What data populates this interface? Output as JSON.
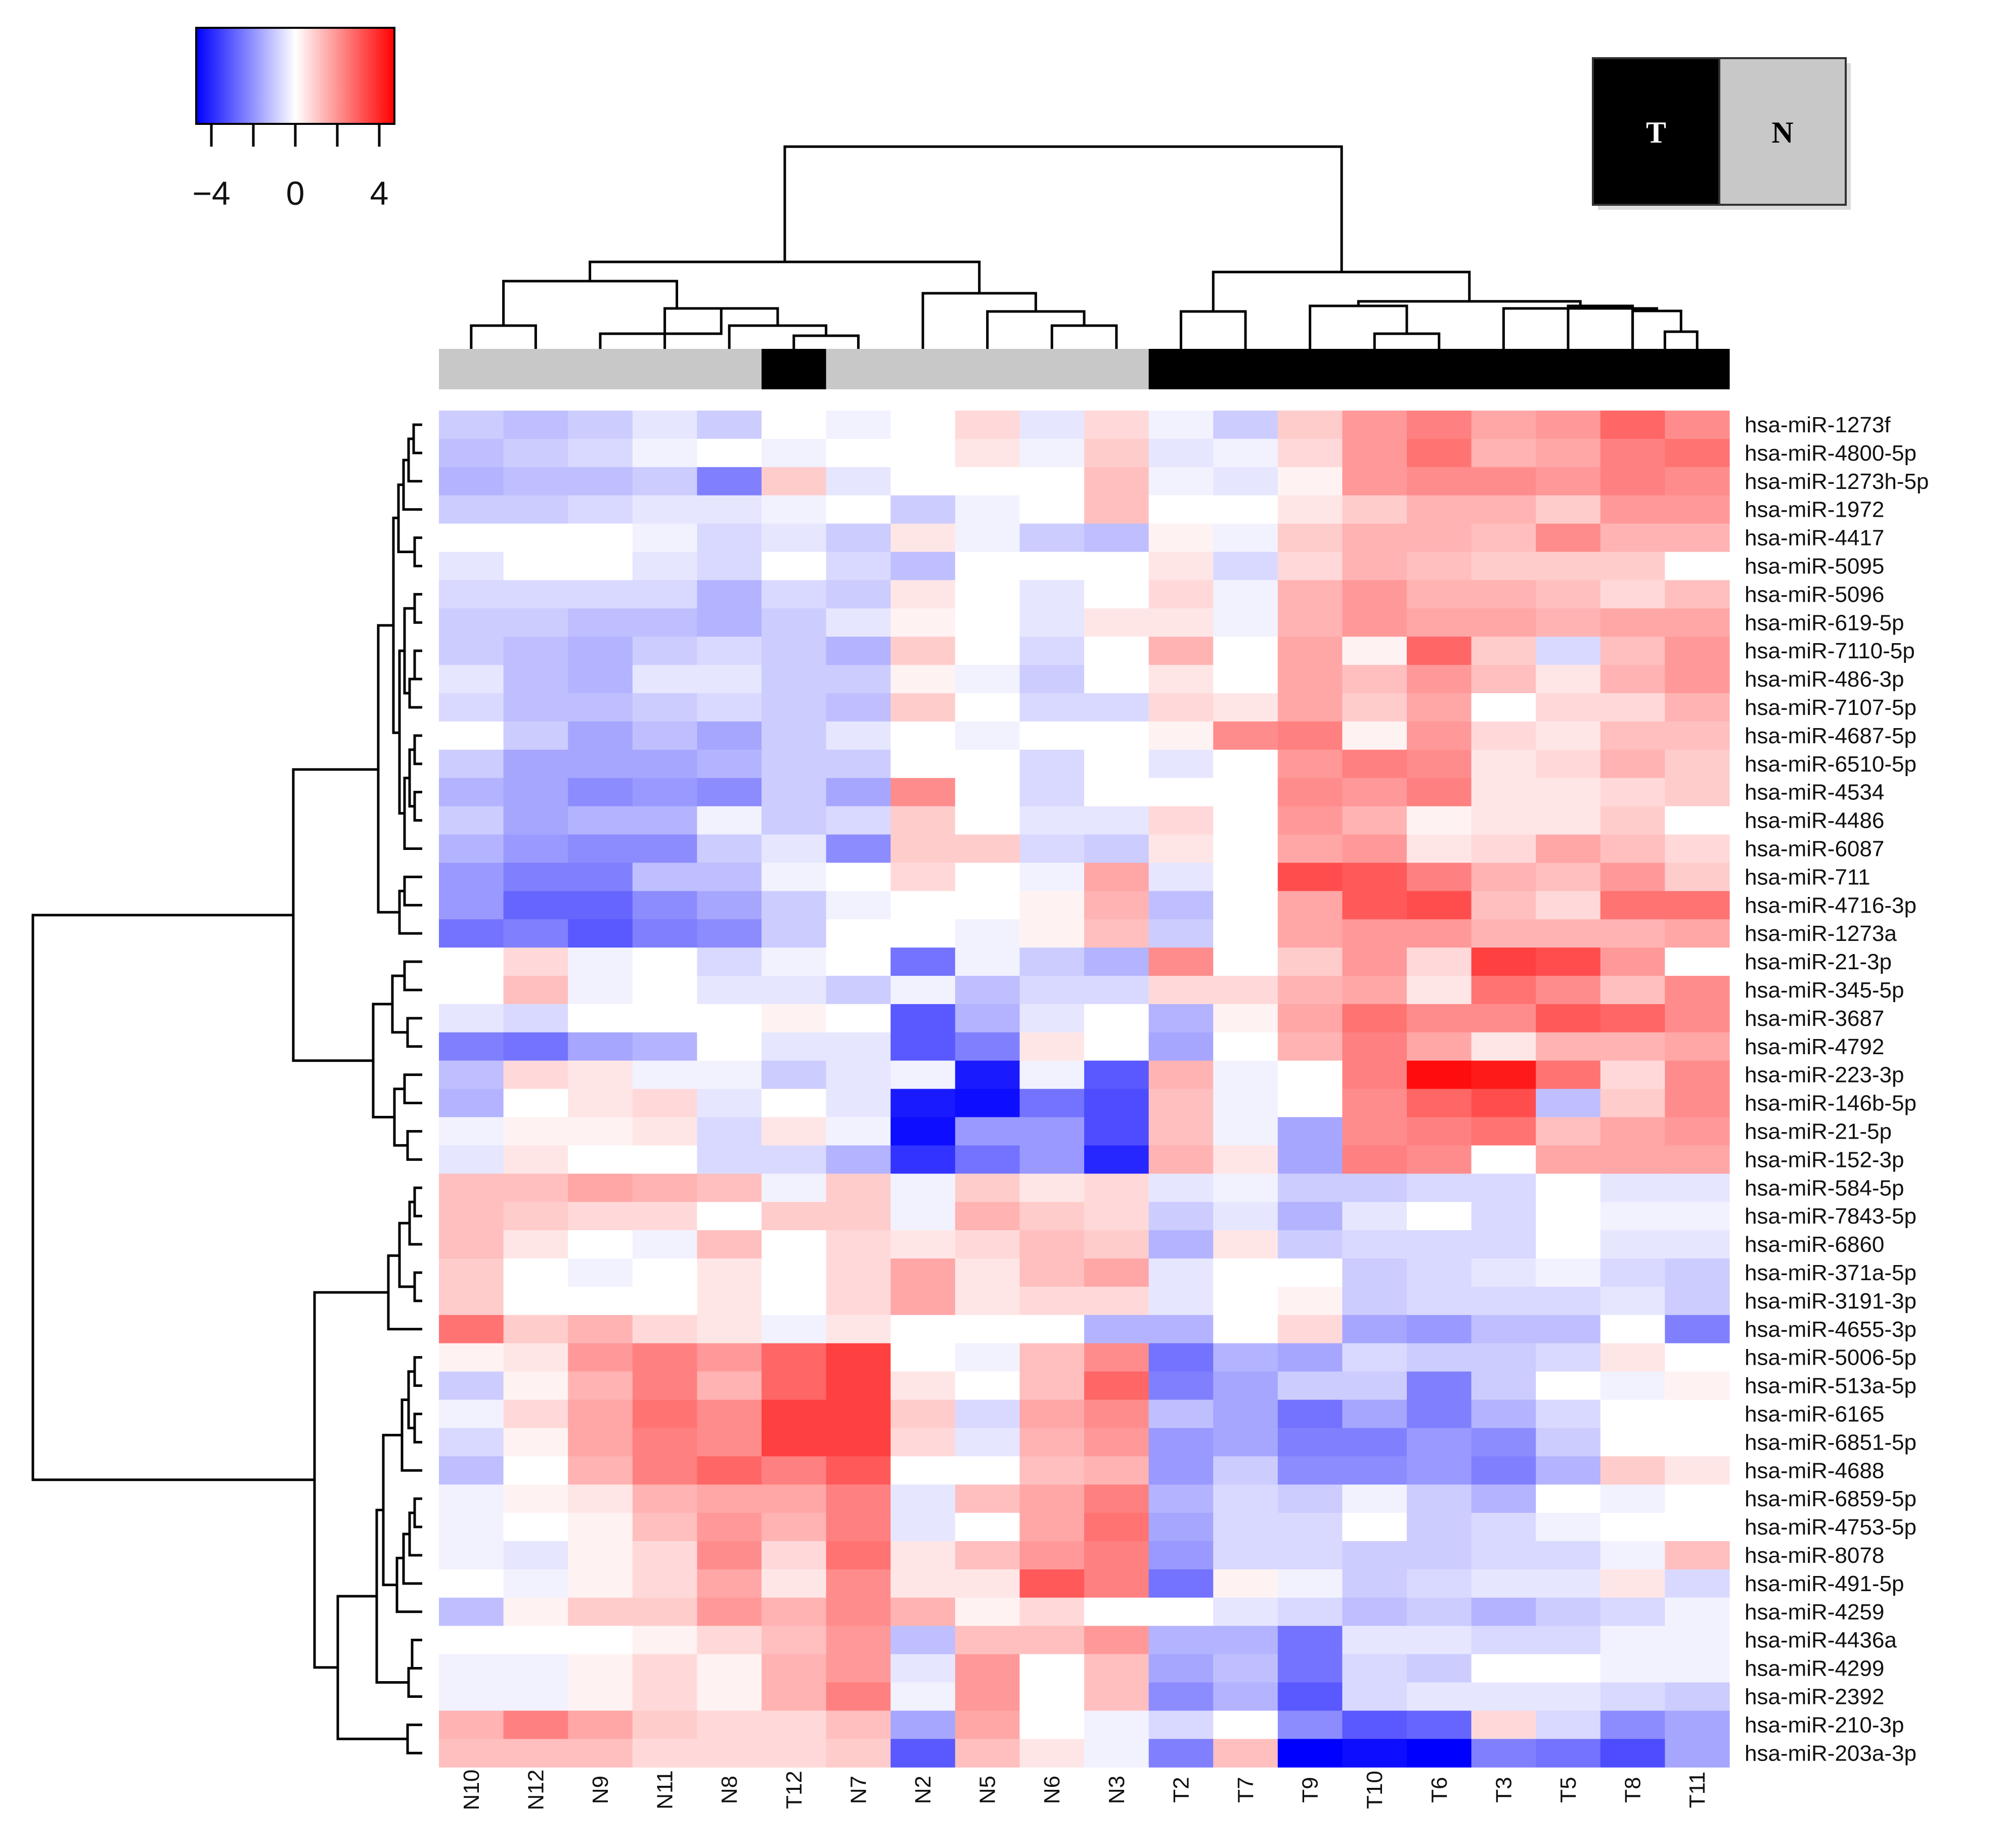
{
  "chart_data": {
    "type": "heatmap",
    "title": "",
    "color_scale": {
      "min": -4,
      "max": 4,
      "low_color": "#0000ff",
      "mid_color": "#ffffff",
      "high_color": "#ff0000",
      "tick_labels": [
        "−4",
        "0",
        "4"
      ]
    },
    "group_legend": [
      {
        "label": "T",
        "color": "#000000",
        "text_color": "#ffffff"
      },
      {
        "label": "N",
        "color": "#c8c8c8",
        "text_color": "#000000"
      }
    ],
    "columns": [
      "N10",
      "N12",
      "N9",
      "N11",
      "N8",
      "T12",
      "N7",
      "N2",
      "N5",
      "N6",
      "N3",
      "T2",
      "T7",
      "T9",
      "T10",
      "T6",
      "T3",
      "T5",
      "T8",
      "T11"
    ],
    "column_groups": [
      "N",
      "N",
      "N",
      "N",
      "N",
      "T",
      "N",
      "N",
      "N",
      "N",
      "N",
      "T",
      "T",
      "T",
      "T",
      "T",
      "T",
      "T",
      "T",
      "T"
    ],
    "rows": [
      "hsa-miR-1273f",
      "hsa-miR-4800-5p",
      "hsa-miR-1273h-5p",
      "hsa-miR-1972",
      "hsa-miR-4417",
      "hsa-miR-5095",
      "hsa-miR-5096",
      "hsa-miR-619-5p",
      "hsa-miR-7110-5p",
      "hsa-miR-486-3p",
      "hsa-miR-7107-5p",
      "hsa-miR-4687-5p",
      "hsa-miR-6510-5p",
      "hsa-miR-4534",
      "hsa-miR-4486",
      "hsa-miR-6087",
      "hsa-miR-711",
      "hsa-miR-4716-3p",
      "hsa-miR-1273a",
      "hsa-miR-21-3p",
      "hsa-miR-345-5p",
      "hsa-miR-3687",
      "hsa-miR-4792",
      "hsa-miR-223-3p",
      "hsa-miR-146b-5p",
      "hsa-miR-21-5p",
      "hsa-miR-152-3p",
      "hsa-miR-584-5p",
      "hsa-miR-7843-5p",
      "hsa-miR-6860",
      "hsa-miR-371a-5p",
      "hsa-miR-3191-3p",
      "hsa-miR-4655-3p",
      "hsa-miR-5006-5p",
      "hsa-miR-513a-5p",
      "hsa-miR-6165",
      "hsa-miR-6851-5p",
      "hsa-miR-4688",
      "hsa-miR-6859-5p",
      "hsa-miR-4753-5p",
      "hsa-miR-8078",
      "hsa-miR-491-5p",
      "hsa-miR-4259",
      "hsa-miR-4436a",
      "hsa-miR-4299",
      "hsa-miR-2392",
      "hsa-miR-210-3p",
      "hsa-miR-203a-3p"
    ],
    "values": [
      [
        -0.8,
        -1.0,
        -0.8,
        -0.4,
        -0.8,
        0,
        -0.2,
        0,
        0.6,
        -0.4,
        0.6,
        -0.2,
        -0.8,
        0.8,
        1.6,
        2.0,
        1.4,
        1.6,
        2.4,
        1.8
      ],
      [
        -1.0,
        -0.8,
        -0.6,
        -0.2,
        0,
        -0.2,
        0,
        0,
        0.4,
        -0.2,
        0.8,
        -0.4,
        -0.2,
        0.6,
        1.6,
        2.2,
        1.2,
        1.4,
        2.0,
        2.2
      ],
      [
        -1.2,
        -1.0,
        -1.0,
        -0.8,
        -2.0,
        0.8,
        -0.4,
        0,
        0,
        0,
        1.0,
        -0.2,
        -0.4,
        0.2,
        1.6,
        1.8,
        1.8,
        1.6,
        2.0,
        1.8
      ],
      [
        -0.8,
        -0.8,
        -0.6,
        -0.4,
        -0.4,
        -0.2,
        0,
        -0.8,
        -0.2,
        0,
        1.0,
        0,
        0,
        0.4,
        0.8,
        1.2,
        1.2,
        0.8,
        1.6,
        1.6
      ],
      [
        0,
        0,
        0,
        -0.2,
        -0.6,
        -0.4,
        -0.8,
        0.4,
        -0.2,
        -0.8,
        -1.0,
        0.2,
        -0.2,
        0.8,
        1.2,
        1.2,
        1.0,
        1.8,
        1.2,
        1.2
      ],
      [
        -0.4,
        0,
        0,
        -0.4,
        -0.6,
        0,
        -0.6,
        -1.0,
        0,
        0,
        0,
        0.4,
        -0.6,
        0.6,
        1.2,
        1.0,
        0.8,
        0.8,
        0.8,
        0
      ],
      [
        -0.6,
        -0.6,
        -0.6,
        -0.6,
        -1.2,
        -0.6,
        -0.8,
        0.4,
        0,
        -0.4,
        0,
        0.6,
        -0.2,
        1.2,
        1.6,
        1.2,
        1.2,
        1.0,
        0.6,
        1.0
      ],
      [
        -0.8,
        -0.8,
        -1.0,
        -1.0,
        -1.2,
        -0.8,
        -0.4,
        0.2,
        0,
        -0.4,
        0.4,
        0.4,
        -0.2,
        1.2,
        1.6,
        1.4,
        1.4,
        1.2,
        1.4,
        1.4
      ],
      [
        -0.8,
        -1.0,
        -1.2,
        -0.8,
        -0.6,
        -0.8,
        -1.2,
        0.8,
        0,
        -0.6,
        0,
        1.2,
        0,
        1.4,
        0.2,
        2.4,
        0.8,
        -0.6,
        1.0,
        1.6
      ],
      [
        -0.4,
        -1.0,
        -1.2,
        -0.4,
        -0.4,
        -0.8,
        -0.8,
        0.2,
        -0.2,
        -0.8,
        0,
        0.4,
        0,
        1.4,
        1.0,
        1.6,
        1.0,
        0.4,
        1.2,
        1.6
      ],
      [
        -0.6,
        -1.0,
        -1.0,
        -0.8,
        -0.6,
        -0.8,
        -1.0,
        0.8,
        0,
        -0.6,
        -0.6,
        0.6,
        0.4,
        1.4,
        0.8,
        1.4,
        0,
        0.6,
        0.6,
        1.2
      ],
      [
        0,
        -0.8,
        -1.4,
        -1.0,
        -1.4,
        -0.8,
        -0.4,
        0,
        -0.2,
        0,
        0,
        0.2,
        1.8,
        2.0,
        0.2,
        1.6,
        0.6,
        0.4,
        1.0,
        1.0
      ],
      [
        -0.8,
        -1.4,
        -1.4,
        -1.4,
        -1.2,
        -0.8,
        -0.8,
        0,
        0,
        -0.6,
        0,
        -0.4,
        0,
        1.6,
        2.0,
        1.8,
        0.4,
        0.6,
        1.2,
        0.8
      ],
      [
        -1.2,
        -1.4,
        -1.8,
        -1.6,
        -1.8,
        -0.8,
        -1.4,
        1.8,
        0,
        -0.6,
        0,
        0,
        0,
        1.8,
        1.6,
        2.0,
        0.4,
        0.4,
        0.6,
        0.8
      ],
      [
        -0.8,
        -1.4,
        -1.2,
        -1.2,
        -0.2,
        -0.8,
        -0.6,
        0.8,
        0,
        -0.4,
        -0.4,
        0.6,
        0,
        1.6,
        1.2,
        0.2,
        0.4,
        0.4,
        0.8,
        0
      ],
      [
        -1.2,
        -1.6,
        -1.8,
        -1.8,
        -0.8,
        -0.4,
        -1.8,
        0.8,
        0.8,
        -0.6,
        -0.8,
        0.4,
        0,
        1.4,
        1.6,
        0.4,
        0.6,
        1.4,
        1.0,
        0.6
      ],
      [
        -1.6,
        -2.0,
        -2.0,
        -1.0,
        -1.0,
        -0.2,
        0,
        0.6,
        0,
        -0.2,
        1.4,
        -0.4,
        0,
        2.8,
        2.6,
        2.0,
        1.2,
        1.0,
        1.6,
        0.8
      ],
      [
        -1.6,
        -2.4,
        -2.4,
        -1.8,
        -1.4,
        -0.8,
        -0.2,
        0,
        0,
        0.2,
        1.2,
        -1.0,
        0,
        1.4,
        2.6,
        2.8,
        1.0,
        0.6,
        2.2,
        2.2
      ],
      [
        -2.2,
        -2.0,
        -2.6,
        -2.0,
        -1.8,
        -0.8,
        0,
        0,
        -0.2,
        0.2,
        1.0,
        -0.8,
        0,
        1.4,
        1.6,
        1.6,
        1.2,
        1.2,
        1.2,
        1.4
      ],
      [
        0,
        0.6,
        -0.2,
        0,
        -0.6,
        -0.2,
        0,
        -2.2,
        -0.2,
        -0.8,
        -1.2,
        1.8,
        0,
        0.8,
        1.6,
        0.6,
        3.0,
        2.8,
        1.6,
        0
      ],
      [
        0,
        1.0,
        -0.2,
        0,
        -0.4,
        -0.4,
        -0.8,
        -0.2,
        -1.0,
        -0.6,
        -0.6,
        0.6,
        0.6,
        1.2,
        1.4,
        0.4,
        2.2,
        1.8,
        1.0,
        1.8
      ],
      [
        -0.4,
        -0.6,
        0,
        0,
        0,
        0.2,
        0,
        -2.6,
        -1.2,
        -0.4,
        0,
        -1.2,
        0.2,
        1.4,
        2.2,
        1.8,
        1.8,
        2.6,
        2.4,
        1.8
      ],
      [
        -2.0,
        -2.2,
        -1.4,
        -1.2,
        0,
        -0.4,
        -0.4,
        -2.6,
        -2.0,
        0.4,
        0,
        -1.4,
        0,
        1.2,
        2.0,
        1.4,
        0.4,
        1.2,
        1.2,
        1.4
      ],
      [
        -1.0,
        0.6,
        0.4,
        -0.2,
        -0.2,
        -0.8,
        -0.4,
        -0.2,
        -3.6,
        -0.2,
        -2.6,
        1.2,
        -0.2,
        0,
        2.0,
        3.8,
        3.6,
        2.2,
        0.6,
        1.8
      ],
      [
        -1.2,
        0,
        0.4,
        0.6,
        -0.4,
        0,
        -0.4,
        -3.6,
        -3.8,
        -2.2,
        -2.8,
        1.0,
        -0.2,
        0,
        1.8,
        2.4,
        2.8,
        -1.0,
        0.8,
        1.8
      ],
      [
        -0.2,
        0.2,
        0.2,
        0.4,
        -0.6,
        0.4,
        -0.2,
        -3.8,
        -1.6,
        -1.6,
        -2.8,
        1.0,
        -0.2,
        -1.4,
        1.8,
        2.0,
        2.2,
        1.0,
        1.4,
        1.6
      ],
      [
        -0.4,
        0.4,
        0,
        0,
        -0.6,
        -0.6,
        -1.2,
        -3.2,
        -2.2,
        -1.6,
        -3.4,
        1.2,
        0.4,
        -1.4,
        2.0,
        1.8,
        0,
        1.4,
        1.4,
        1.4
      ],
      [
        1.0,
        1.0,
        1.4,
        1.2,
        1.0,
        -0.2,
        0.8,
        -0.2,
        0.8,
        0.4,
        0.6,
        -0.4,
        -0.2,
        -0.8,
        -0.8,
        -0.6,
        -0.6,
        0,
        -0.4,
        -0.4
      ],
      [
        1.0,
        0.8,
        0.6,
        0.6,
        0,
        0.8,
        0.8,
        -0.2,
        1.2,
        0.8,
        0.6,
        -0.8,
        -0.4,
        -1.2,
        -0.4,
        0,
        -0.6,
        0,
        -0.2,
        -0.2
      ],
      [
        1.0,
        0.4,
        0,
        -0.2,
        1.0,
        0,
        0.6,
        0.4,
        0.6,
        1.0,
        0.8,
        -1.2,
        0.4,
        -0.8,
        -0.6,
        -0.6,
        -0.6,
        0,
        -0.4,
        -0.4
      ],
      [
        0.8,
        0,
        -0.2,
        0,
        0.4,
        0,
        0.6,
        1.4,
        0.4,
        1.0,
        1.4,
        -0.4,
        0,
        0,
        -0.8,
        -0.6,
        -0.4,
        -0.2,
        -0.6,
        -0.8
      ],
      [
        0.8,
        0,
        0,
        0,
        0.4,
        0,
        0.6,
        1.4,
        0.4,
        0.6,
        0.6,
        -0.4,
        0,
        0.2,
        -0.8,
        -0.6,
        -0.6,
        -0.6,
        -0.4,
        -0.8
      ],
      [
        2.2,
        0.8,
        1.2,
        0.6,
        0.4,
        -0.2,
        0.4,
        0,
        0,
        0,
        -1.2,
        -1.2,
        0,
        0.6,
        -1.4,
        -1.6,
        -1.0,
        -1.0,
        0,
        -2.0
      ],
      [
        0.2,
        0.4,
        1.6,
        2.0,
        1.6,
        2.4,
        3.0,
        0,
        -0.2,
        1.0,
        1.8,
        -2.2,
        -1.2,
        -1.4,
        -0.6,
        -0.8,
        -0.8,
        -0.6,
        0.4,
        0
      ],
      [
        -0.8,
        0.2,
        1.2,
        2.0,
        1.2,
        2.4,
        3.0,
        0.4,
        0,
        1.0,
        2.4,
        -2.0,
        -1.4,
        -0.8,
        -0.8,
        -2.0,
        -0.8,
        0,
        -0.2,
        0.2
      ],
      [
        -0.2,
        0.6,
        1.4,
        2.2,
        1.8,
        3.0,
        3.0,
        0.8,
        -0.6,
        1.4,
        1.8,
        -1.0,
        -1.4,
        -2.2,
        -1.4,
        -2.0,
        -1.2,
        -0.6,
        0,
        0
      ],
      [
        -0.6,
        0.2,
        1.4,
        2.0,
        1.8,
        3.0,
        3.0,
        0.6,
        -0.4,
        1.2,
        1.6,
        -1.6,
        -1.4,
        -2.0,
        -2.0,
        -1.6,
        -1.8,
        -0.8,
        0,
        0
      ],
      [
        -1.0,
        0,
        1.2,
        2.0,
        2.4,
        2.0,
        2.6,
        0,
        0,
        1.0,
        1.2,
        -1.6,
        -0.8,
        -1.8,
        -1.8,
        -1.6,
        -2.0,
        -1.2,
        0.8,
        0.4
      ],
      [
        -0.2,
        0.2,
        0.4,
        1.2,
        1.4,
        1.4,
        2.0,
        -0.4,
        1.0,
        1.4,
        2.0,
        -1.2,
        -0.6,
        -0.8,
        -0.2,
        -0.8,
        -1.2,
        0,
        -0.2,
        0
      ],
      [
        -0.2,
        0,
        0.2,
        1.0,
        1.6,
        1.2,
        2.0,
        -0.4,
        0,
        1.4,
        2.2,
        -1.4,
        -0.6,
        -0.6,
        0,
        -0.8,
        -0.6,
        -0.2,
        0,
        0
      ],
      [
        -0.2,
        -0.4,
        0.2,
        0.6,
        1.8,
        0.6,
        2.2,
        0.4,
        1.0,
        1.6,
        2.0,
        -1.6,
        -0.6,
        -0.6,
        -0.8,
        -0.8,
        -0.6,
        -0.6,
        -0.2,
        1.0
      ],
      [
        0,
        -0.2,
        0.2,
        0.6,
        1.4,
        0.4,
        1.8,
        0.4,
        0.4,
        2.6,
        2.0,
        -2.2,
        0.2,
        -0.2,
        -0.8,
        -0.6,
        -0.4,
        -0.4,
        0.4,
        -0.6
      ],
      [
        -1.0,
        0.2,
        0.8,
        0.8,
        1.6,
        1.2,
        1.8,
        1.2,
        0.2,
        0.6,
        0,
        0,
        -0.4,
        -0.6,
        -1.0,
        -0.8,
        -1.2,
        -0.8,
        -0.6,
        -0.2
      ],
      [
        0,
        0,
        0,
        0.2,
        0.6,
        1.0,
        1.6,
        -1.0,
        1.0,
        1.0,
        1.6,
        -1.2,
        -1.2,
        -2.2,
        -0.4,
        -0.4,
        -0.6,
        -0.6,
        -0.2,
        -0.2
      ],
      [
        -0.2,
        -0.2,
        0.2,
        0.6,
        0.2,
        1.2,
        1.6,
        -0.4,
        1.6,
        0,
        1.0,
        -1.4,
        -1.0,
        -2.2,
        -0.6,
        -0.8,
        0,
        0,
        -0.2,
        -0.2
      ],
      [
        -0.2,
        -0.2,
        0.2,
        0.6,
        0.2,
        1.2,
        2.0,
        -0.2,
        1.6,
        0,
        1.0,
        -1.8,
        -1.2,
        -2.6,
        -0.6,
        -0.4,
        -0.4,
        -0.4,
        -0.6,
        -0.8
      ],
      [
        1.2,
        2.0,
        1.4,
        0.8,
        0.6,
        0.6,
        1.0,
        -1.4,
        1.4,
        0,
        -0.2,
        -0.6,
        0,
        -1.8,
        -2.6,
        -2.4,
        0.6,
        -0.6,
        -1.8,
        -1.4
      ],
      [
        1.0,
        1.0,
        1.0,
        0.6,
        0.6,
        0.6,
        0.8,
        -2.6,
        1.0,
        0.4,
        -0.2,
        -2.0,
        1.0,
        -4.0,
        -3.8,
        -4.0,
        -2.0,
        -2.2,
        -2.8,
        -1.4
      ]
    ]
  }
}
